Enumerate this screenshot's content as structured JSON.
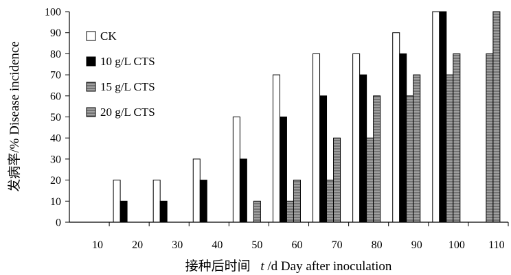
{
  "chart_data": {
    "type": "bar",
    "xlabel_cn": "接种后时间",
    "xlabel_var": "t",
    "xlabel_rest": "/d Day after inoculation",
    "ylabel": "发病率/% Disease incidence",
    "categories": [
      "10",
      "20",
      "30",
      "40",
      "50",
      "60",
      "70",
      "80",
      "90",
      "100",
      "110"
    ],
    "ylim": [
      0,
      100
    ],
    "yticks": [
      0,
      10,
      20,
      30,
      40,
      50,
      60,
      70,
      80,
      90,
      100
    ],
    "legend_position": "top-left",
    "grid": false,
    "series": [
      {
        "name": "CK",
        "values": [
          0,
          20,
          20,
          30,
          50,
          70,
          80,
          80,
          90,
          100,
          0
        ],
        "fill": "#ffffff"
      },
      {
        "name": "10 g/L CTS",
        "values": [
          0,
          10,
          10,
          20,
          30,
          50,
          60,
          70,
          80,
          100,
          0
        ],
        "fill": "#000000"
      },
      {
        "name": "15 g/L CTS",
        "values": [
          0,
          0,
          0,
          0,
          0,
          10,
          20,
          40,
          60,
          70,
          80
        ],
        "fill": "#8a8a8a"
      },
      {
        "name": "20 g/L CTS",
        "values": [
          0,
          0,
          0,
          0,
          10,
          20,
          40,
          60,
          70,
          80,
          100
        ],
        "fill": "#8a8a8a"
      }
    ]
  }
}
